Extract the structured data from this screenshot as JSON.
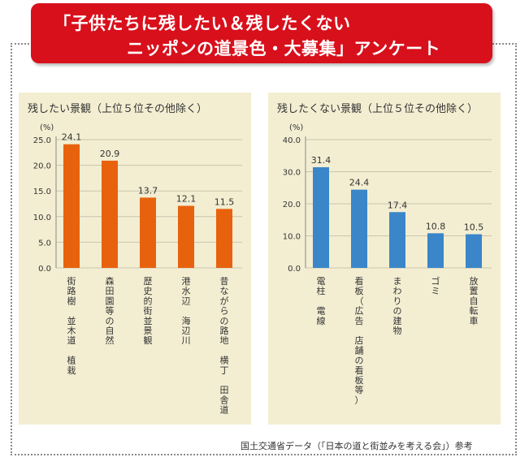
{
  "title": {
    "line1": "「子供たちに残したい＆残したくない",
    "line2": "ニッポンの道景色・大募集」アンケート"
  },
  "source": "国土交通省データ（「日本の道と街並みを考える会」）参考",
  "colors": {
    "banner": "#d8101c",
    "panel_bg": "#f3eed2",
    "left_bars": "#e8620e",
    "right_bars": "#3a86c9"
  },
  "chart_data": [
    {
      "type": "bar",
      "title": "残したい景観（上位５位その他除く）",
      "unit": "(%)",
      "categories": [
        "街路樹 並木道 植栽",
        "森田園等の自然",
        "歴史的街並景観",
        "港水辺 海辺川",
        "昔ながらの路地 横丁 田舎道"
      ],
      "values": [
        24.1,
        20.9,
        13.7,
        12.1,
        11.5
      ],
      "value_labels": [
        "24.1",
        "20.9",
        "13.7",
        "12.1",
        "11.5"
      ],
      "ylim": [
        0,
        25
      ],
      "yticks": [
        "0.0",
        "5.0",
        "10.0",
        "15.0",
        "20.0",
        "25.0"
      ],
      "ytick_values": [
        0,
        5,
        10,
        15,
        20,
        25
      ],
      "color": "#e8620e"
    },
    {
      "type": "bar",
      "title": "残したくない景観（上位５位その他除く）",
      "unit": "(%)",
      "categories": [
        "電柱 電線",
        "看板（広告 店舗の看板等）",
        "まわりの建物",
        "ゴミ",
        "放置自転車"
      ],
      "values": [
        31.4,
        24.4,
        17.4,
        10.8,
        10.5
      ],
      "value_labels": [
        "31.4",
        "24.4",
        "17.4",
        "10.8",
        "10.5"
      ],
      "ylim": [
        0,
        40
      ],
      "yticks": [
        "0.0",
        "10.0",
        "20.0",
        "30.0",
        "40.0"
      ],
      "ytick_values": [
        0,
        10,
        20,
        30,
        40
      ],
      "color": "#3a86c9"
    }
  ]
}
